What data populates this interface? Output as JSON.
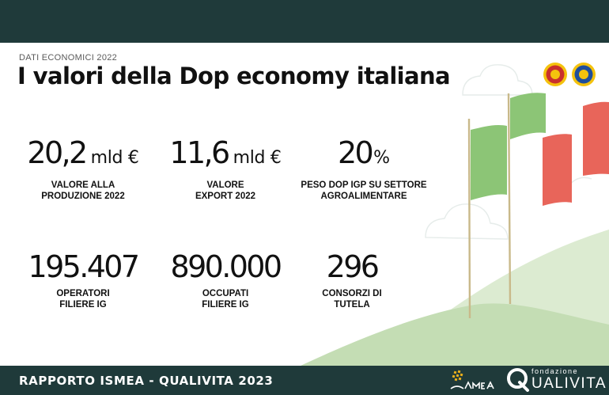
{
  "header": {
    "kicker": "DATI ECONOMICI 2022",
    "title": "I valori della Dop economy italiana",
    "badges": [
      {
        "icon": "dop-seal-icon",
        "color": "#c9302c"
      },
      {
        "icon": "igp-seal-icon",
        "color": "#1f4e9c"
      }
    ]
  },
  "stats": [
    {
      "value": "20,2",
      "unit": "mld €",
      "label": [
        "VALORE ALLA",
        "PRODUZIONE 2022"
      ]
    },
    {
      "value": "11,6",
      "unit": "mld €",
      "label": [
        "VALORE",
        "EXPORT 2022"
      ]
    },
    {
      "value": "20",
      "unit": "%",
      "label": [
        "PESO DOP IGP SU SETTORE",
        "AGROALIMENTARE"
      ]
    },
    {
      "value": "195.407",
      "unit": "",
      "label": [
        "OPERATORI",
        "FILIERE IG"
      ]
    },
    {
      "value": "890.000",
      "unit": "",
      "label": [
        "OCCUPATI",
        "FILIERE IG"
      ]
    },
    {
      "value": "296",
      "unit": "",
      "label": [
        "CONSORZI DI",
        "TUTELA"
      ]
    }
  ],
  "footer": {
    "text": "RAPPORTO ISMEA - QUALIVITA 2023",
    "ismea_logo": "ismea-logo",
    "qualivita_small": "fondazione",
    "qualivita_name": "UALIVITA"
  },
  "colors": {
    "dark": "#1f3a3a",
    "flag_green": "#8cc576",
    "flag_red": "#e8655a",
    "hill": "#cfe3c0",
    "ismea_yellow": "#f4b41a"
  }
}
